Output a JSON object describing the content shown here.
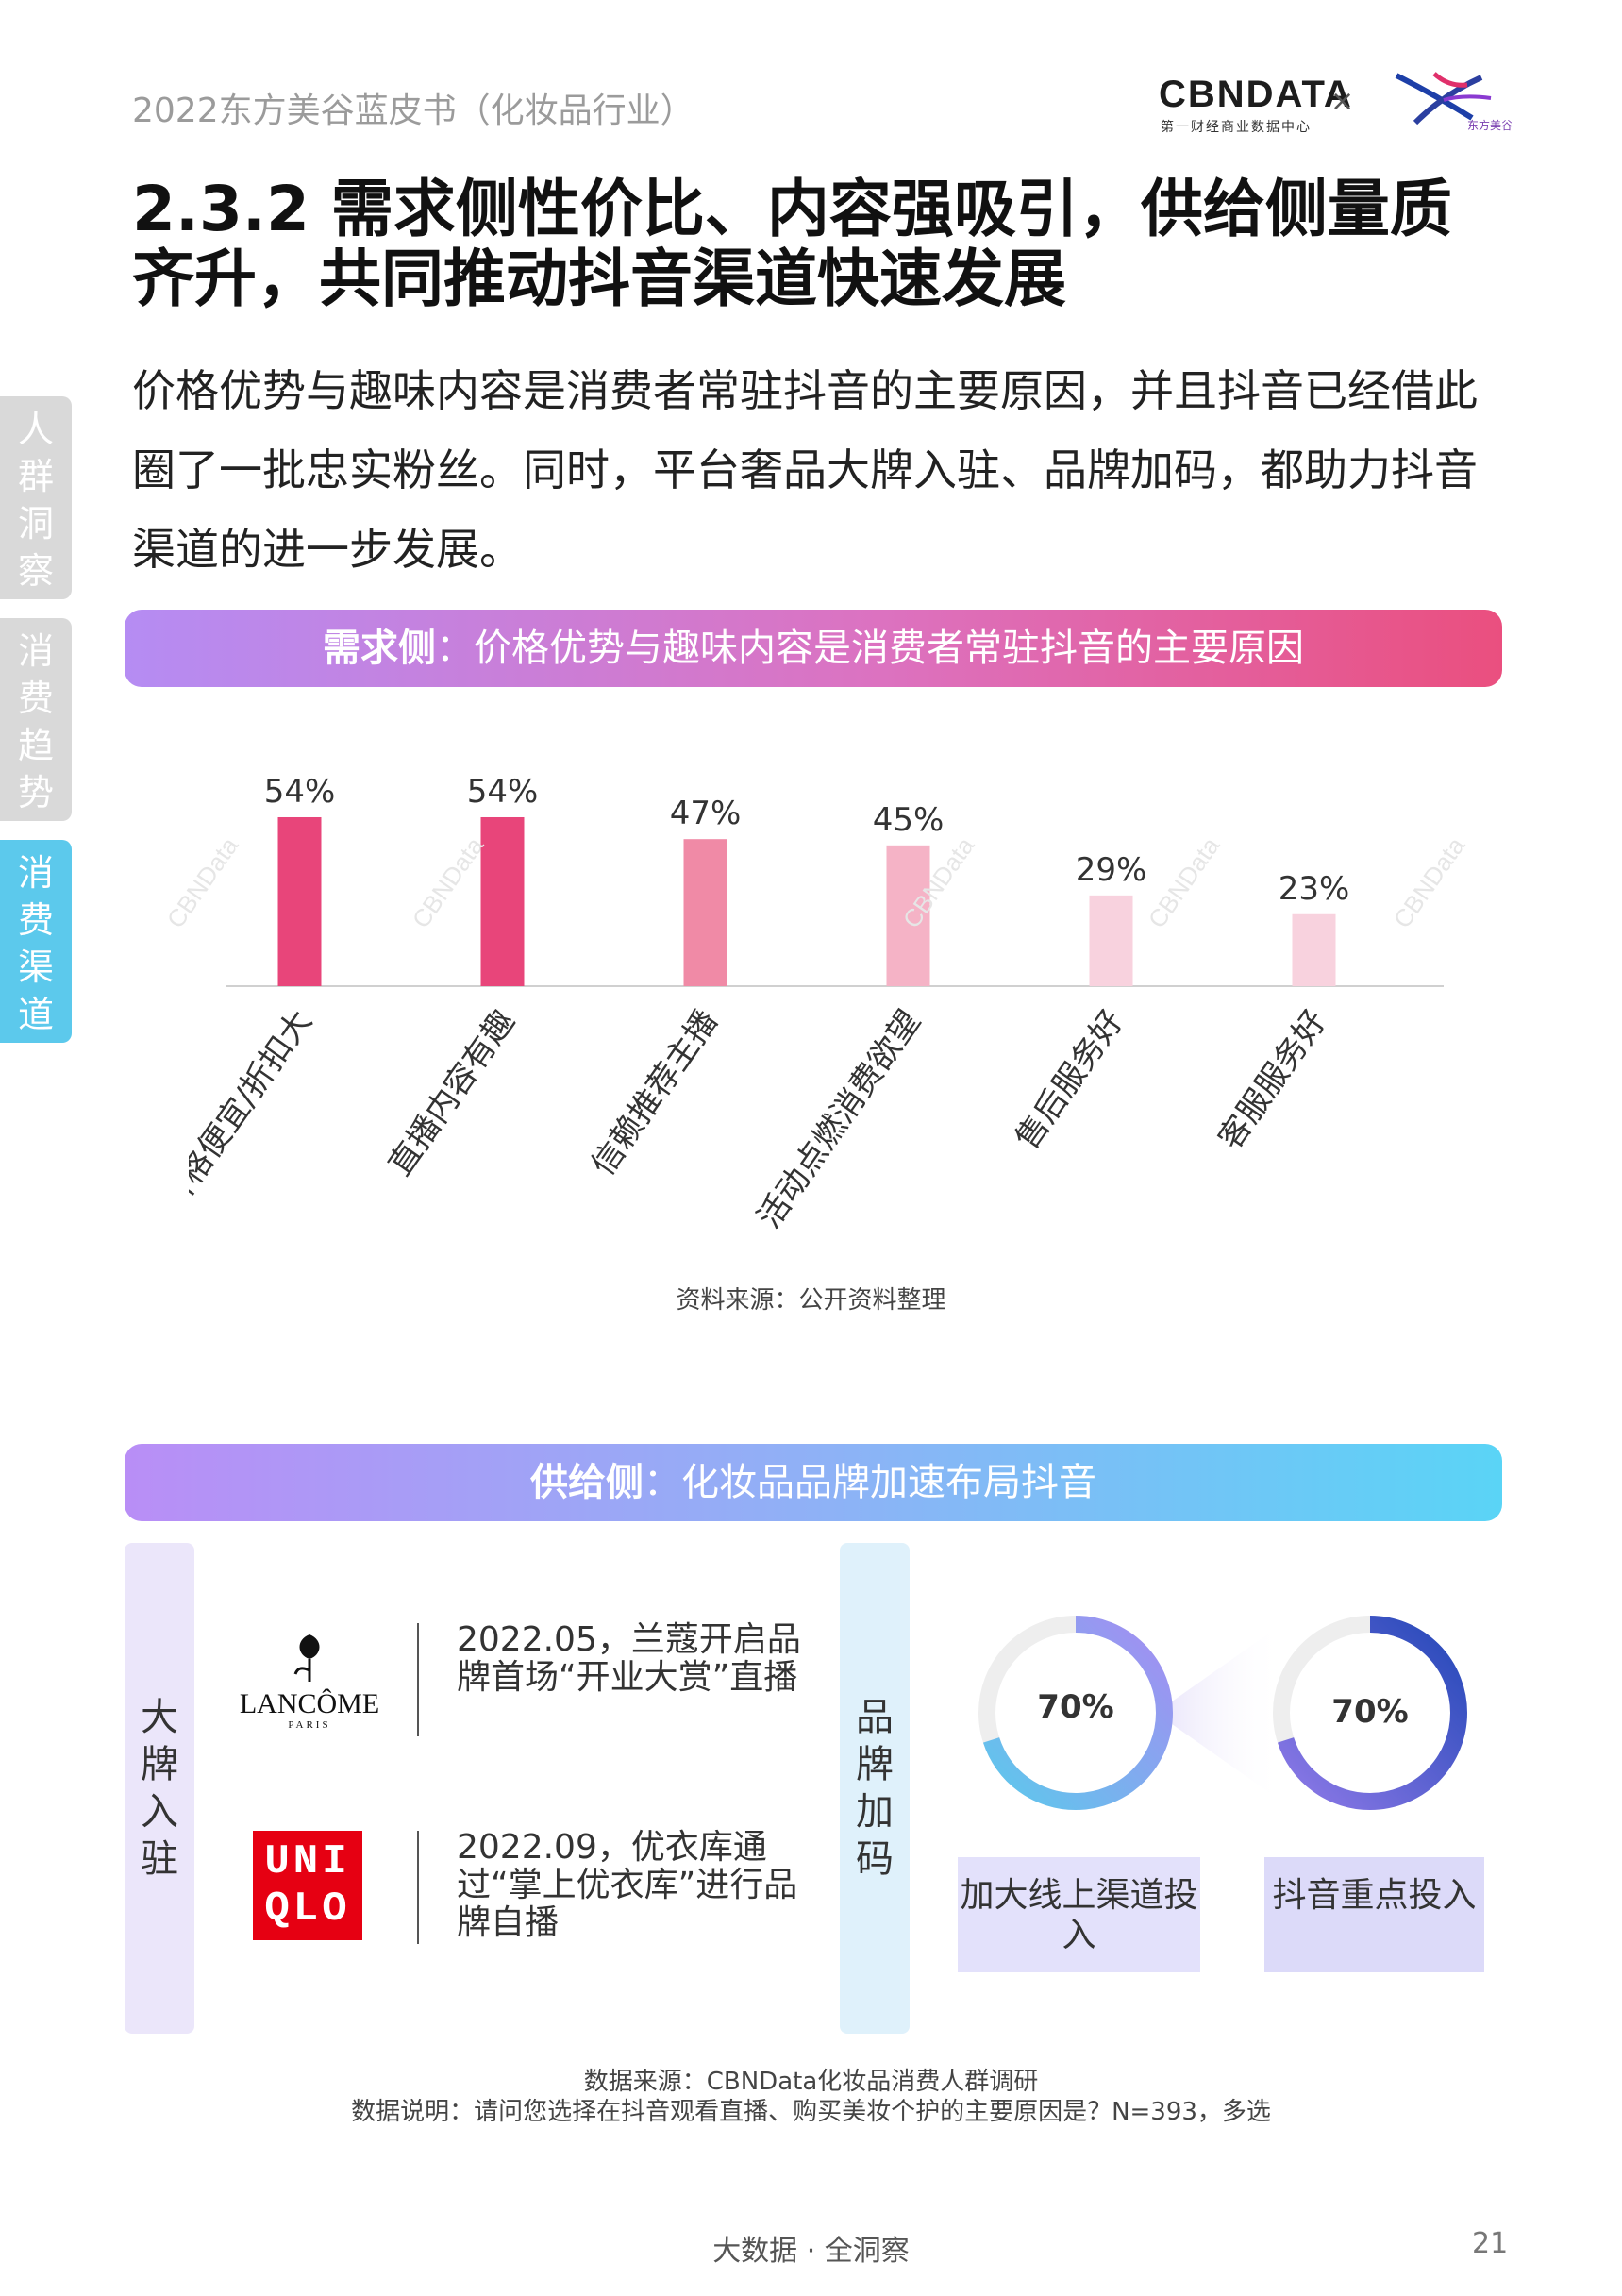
{
  "header": {
    "doc_title": "2022东方美谷蓝皮书（化妆品行业）",
    "logo_cbn": "CBNDATA",
    "logo_cbn_sub": "第一财经商业数据中心",
    "logo_x": "×",
    "logo_partner": "东方美谷"
  },
  "heading": "2.3.2 需求侧性价比、内容强吸引，供给侧量质齐升，共同推动抖音渠道快速发展",
  "intro": "价格优势与趣味内容是消费者常驻抖音的主要原因，并且抖音已经借此圈了一批忠实粉丝。同时，平台奢品大牌入驻、品牌加码，都助力抖音渠道的进一步发展。",
  "side_tabs": [
    {
      "label": "人群洞察",
      "color": "#d9d9d9"
    },
    {
      "label": "消费趋势",
      "color": "#d9d9d9"
    },
    {
      "label": "消费渠道",
      "color": "#5cc9ec"
    }
  ],
  "demand_banner": {
    "bold": "需求侧",
    "text": "：价格优势与趣味内容是消费者常驻抖音的主要原因"
  },
  "chart_data": {
    "type": "bar",
    "categories": [
      "价格便宜/折扣大",
      "直播内容有趣",
      "信赖推荐主播",
      "活动点燃消费欲望",
      "售后服务好",
      "客服服务好"
    ],
    "values": [
      54,
      54,
      47,
      45,
      29,
      23
    ],
    "value_labels": [
      "54%",
      "54%",
      "47%",
      "45%",
      "29%",
      "23%"
    ],
    "colors": [
      "#e8457a",
      "#e8457a",
      "#f08aa6",
      "#f5b3c6",
      "#f8d2de",
      "#f8d2de"
    ],
    "ylim": [
      0,
      60
    ],
    "grid": false,
    "legend": "none"
  },
  "source1": "资料来源：公开资料整理",
  "supply_banner": {
    "bold": "供给侧",
    "text": "：化妆品品牌加速布局抖音"
  },
  "supply": {
    "big_brand_label": "大牌入驻",
    "brand_add_label": "品牌加码",
    "lancome_name": "LANCÔME",
    "lancome_sub": "PARIS",
    "uniqlo_line1": "UNI",
    "uniqlo_line2": "QLO",
    "event1": "2022.05，兰蔻开启品牌首场“开业大赏”直播",
    "event2": "2022.09，优衣库通过“掌上优衣库”进行品牌自播",
    "donuts": [
      {
        "value": 70,
        "label": "70%",
        "caption": "加大线上渠道投入"
      },
      {
        "value": 70,
        "label": "70%",
        "caption": "抖音重点投入"
      }
    ]
  },
  "source2_line1": "数据来源：CBNData化妆品消费人群调研",
  "source2_line2": "数据说明：请问您选择在抖音观看直播、购买美妆个护的主要原因是？N=393，多选",
  "footer": "大数据 · 全洞察",
  "page_number": "21"
}
